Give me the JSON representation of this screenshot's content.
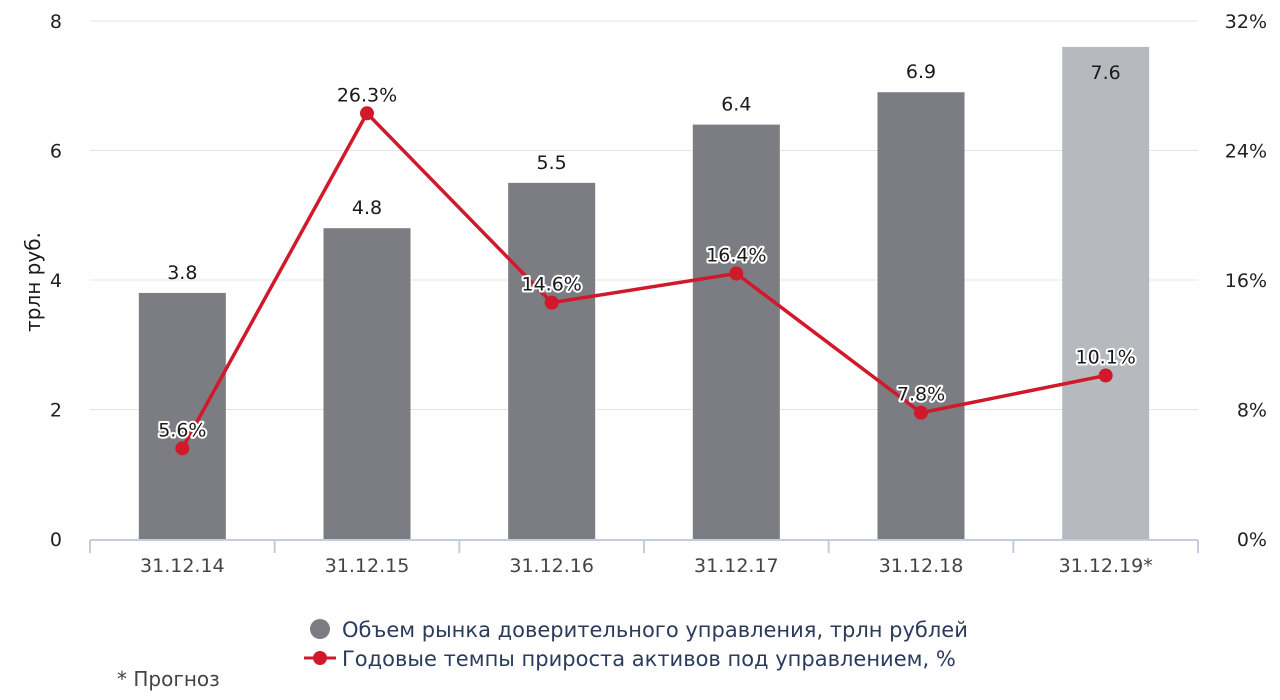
{
  "chart_data": {
    "type": "bar",
    "categories": [
      "31.12.14",
      "31.12.15",
      "31.12.16",
      "31.12.17",
      "31.12.18",
      "31.12.19*"
    ],
    "ylabel": "трлн руб.",
    "ylim": [
      0,
      8
    ],
    "y_ticks": [
      "0",
      "2",
      "4",
      "6",
      "8"
    ],
    "y2lim": [
      0,
      32
    ],
    "y2_ticks": [
      "0%",
      "8%",
      "16%",
      "24%",
      "32%"
    ],
    "grid": true,
    "legend_position": "bottom",
    "series": [
      {
        "name": "Объем рынка доверительного управления, трлн рублей",
        "type": "bar",
        "axis": "left",
        "values": [
          3.8,
          4.8,
          5.5,
          6.4,
          6.9,
          7.6
        ],
        "labels": [
          "3.8",
          "4.8",
          "5.5",
          "6.4",
          "6.9",
          "7.6"
        ],
        "color": "#7b7d82",
        "forecast_color": "#b6babf",
        "forecast_index": 5
      },
      {
        "name": "Годовые темпы прироста активов под управлением, %",
        "type": "line",
        "axis": "right",
        "values": [
          5.6,
          26.3,
          14.6,
          16.4,
          7.8,
          10.1
        ],
        "labels": [
          "5.6%",
          "26.3%",
          "14.6%",
          "16.4%",
          "7.8%",
          "10.1%"
        ],
        "color": "#d0192b"
      }
    ]
  },
  "footnote": "* Прогноз"
}
